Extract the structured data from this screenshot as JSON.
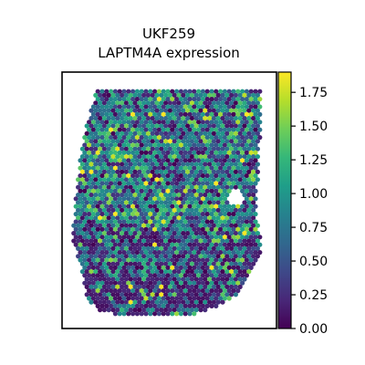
{
  "chart_data": {
    "type": "heatmap",
    "subtype": "spatial-spot-expression",
    "title_line1": "UKF259",
    "title_line2": "LAPTM4A expression",
    "xlabel": "",
    "ylabel": "",
    "grid": false,
    "colormap": "viridis",
    "colormap_stops": [
      "#440154",
      "#482878",
      "#3e4989",
      "#31688e",
      "#26828e",
      "#1f9e89",
      "#35b779",
      "#6ece58",
      "#b5de2b",
      "#fde725"
    ],
    "colorbar": {
      "min": 0.0,
      "max": 1.9,
      "ticks": [
        0.0,
        0.25,
        0.5,
        0.75,
        1.0,
        1.25,
        1.5,
        1.75
      ],
      "tick_labels": [
        "0.00",
        "0.25",
        "0.50",
        "0.75",
        "1.00",
        "1.25",
        "1.50",
        "1.75"
      ]
    },
    "value_distribution": {
      "typical": 0.85,
      "spread": 0.45,
      "low_region_value": 0.05
    }
  }
}
